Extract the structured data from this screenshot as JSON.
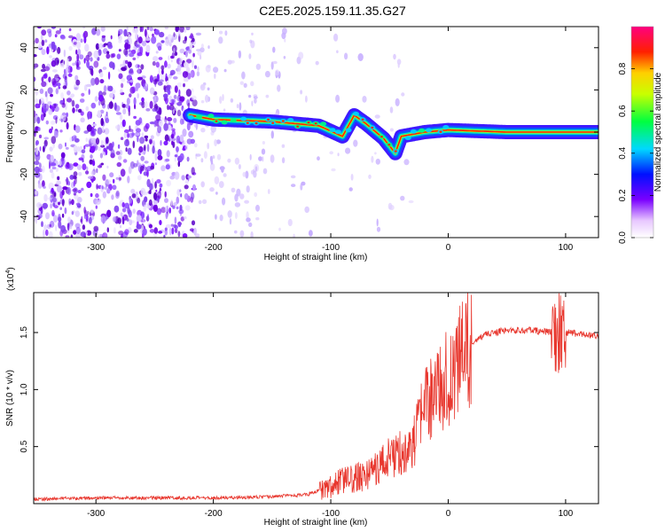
{
  "title": "C2E5.2025.159.11.35.G27",
  "colors": {
    "snr_line": "#e8372e",
    "frame": "#000000",
    "trace_core": "#ff0000",
    "trace_ridge": "#00e0c0"
  },
  "chart_data": [
    {
      "type": "heatmap",
      "xlabel": "Height of straight line (km)",
      "ylabel": "Frequency (Hz)",
      "xlim": [
        -353,
        128
      ],
      "ylim": [
        -50,
        50
      ],
      "xticks": [
        -300,
        -200,
        -100,
        0,
        100
      ],
      "yticks": [
        -40,
        -20,
        0,
        20,
        40
      ],
      "grid": false,
      "colorbar": {
        "label": "Normalized spectral amplitude",
        "range": [
          0,
          1
        ],
        "ticks": [
          "0.0",
          "0.2",
          "0.4",
          "0.6",
          "0.8"
        ],
        "tick_values": [
          0.0,
          0.2,
          0.4,
          0.6,
          0.8
        ],
        "colormap": "rainbow (white-violet-blue-cyan-green-yellow-red-magenta)"
      },
      "ridge": {
        "x": [
          -220,
          -200,
          -150,
          -110,
          -90,
          -80,
          -70,
          -55,
          -45,
          -40,
          -20,
          0,
          50,
          128
        ],
        "y": [
          8,
          6,
          5,
          3,
          -2,
          8,
          4,
          -3,
          -10,
          -2,
          0,
          1,
          0,
          0
        ]
      }
    },
    {
      "type": "line",
      "xlabel": "Height of straight line (km)",
      "ylabel": "SNR (10 * v/v)",
      "y_multiplier": "(x10^4)",
      "y_multiplier_base": "(x10",
      "y_multiplier_exp": "4",
      "y_multiplier_close": ")",
      "xlim": [
        -353,
        128
      ],
      "ylim": [
        0,
        1.85
      ],
      "xticks": [
        -300,
        -200,
        -100,
        0,
        100
      ],
      "yticks": [
        "0.5",
        "1.0",
        "1.5"
      ],
      "ytick_values": [
        0.5,
        1.0,
        1.5
      ],
      "grid": false,
      "series": [
        {
          "x": [
            -353,
            -300,
            -250,
            -200,
            -150,
            -120,
            -100,
            -90,
            -80,
            -70,
            -60,
            -50,
            -40,
            -30,
            -20,
            -10,
            0,
            10,
            20,
            30,
            40,
            50,
            60,
            70,
            80,
            90,
            95,
            100,
            110,
            128
          ],
          "y": [
            0.04,
            0.05,
            0.05,
            0.05,
            0.06,
            0.08,
            0.15,
            0.2,
            0.22,
            0.25,
            0.32,
            0.4,
            0.45,
            0.5,
            0.85,
            1.0,
            1.1,
            1.25,
            1.38,
            1.48,
            1.5,
            1.52,
            1.52,
            1.52,
            1.51,
            1.5,
            1.48,
            1.5,
            1.49,
            1.47
          ]
        }
      ]
    }
  ]
}
